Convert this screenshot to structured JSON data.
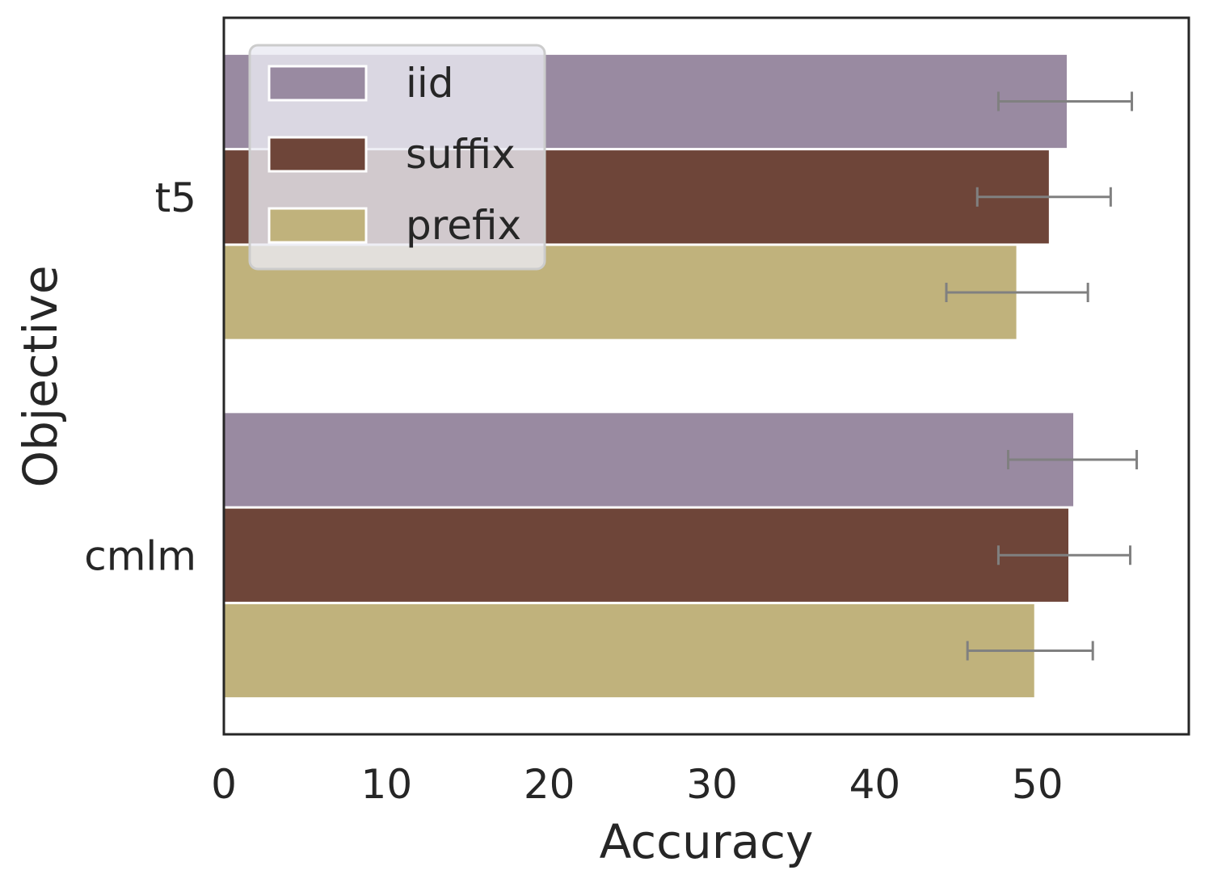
{
  "chart_data": {
    "type": "bar",
    "orientation": "horizontal",
    "categories": [
      "t5",
      "cmlm"
    ],
    "series": [
      {
        "name": "iid",
        "color": "#998aa1",
        "values": [
          51.8,
          52.2
        ],
        "errors": [
          [
            47.6,
            55.8
          ],
          [
            48.2,
            56.1
          ]
        ]
      },
      {
        "name": "suffix",
        "color": "#6e4539",
        "values": [
          50.7,
          51.9
        ],
        "errors": [
          [
            46.3,
            54.5
          ],
          [
            47.6,
            55.7
          ]
        ]
      },
      {
        "name": "prefix",
        "color": "#c0b27c",
        "values": [
          48.7,
          49.8
        ],
        "errors": [
          [
            44.4,
            53.1
          ],
          [
            45.7,
            53.4
          ]
        ]
      }
    ],
    "xlabel": "Accuracy",
    "ylabel": "Objective",
    "xlim": [
      0,
      59.3
    ],
    "xticks": [
      "0",
      "10",
      "20",
      "30",
      "40",
      "50"
    ],
    "error_bar_color": "#808080",
    "grid": false,
    "legend_position": "top-left"
  }
}
